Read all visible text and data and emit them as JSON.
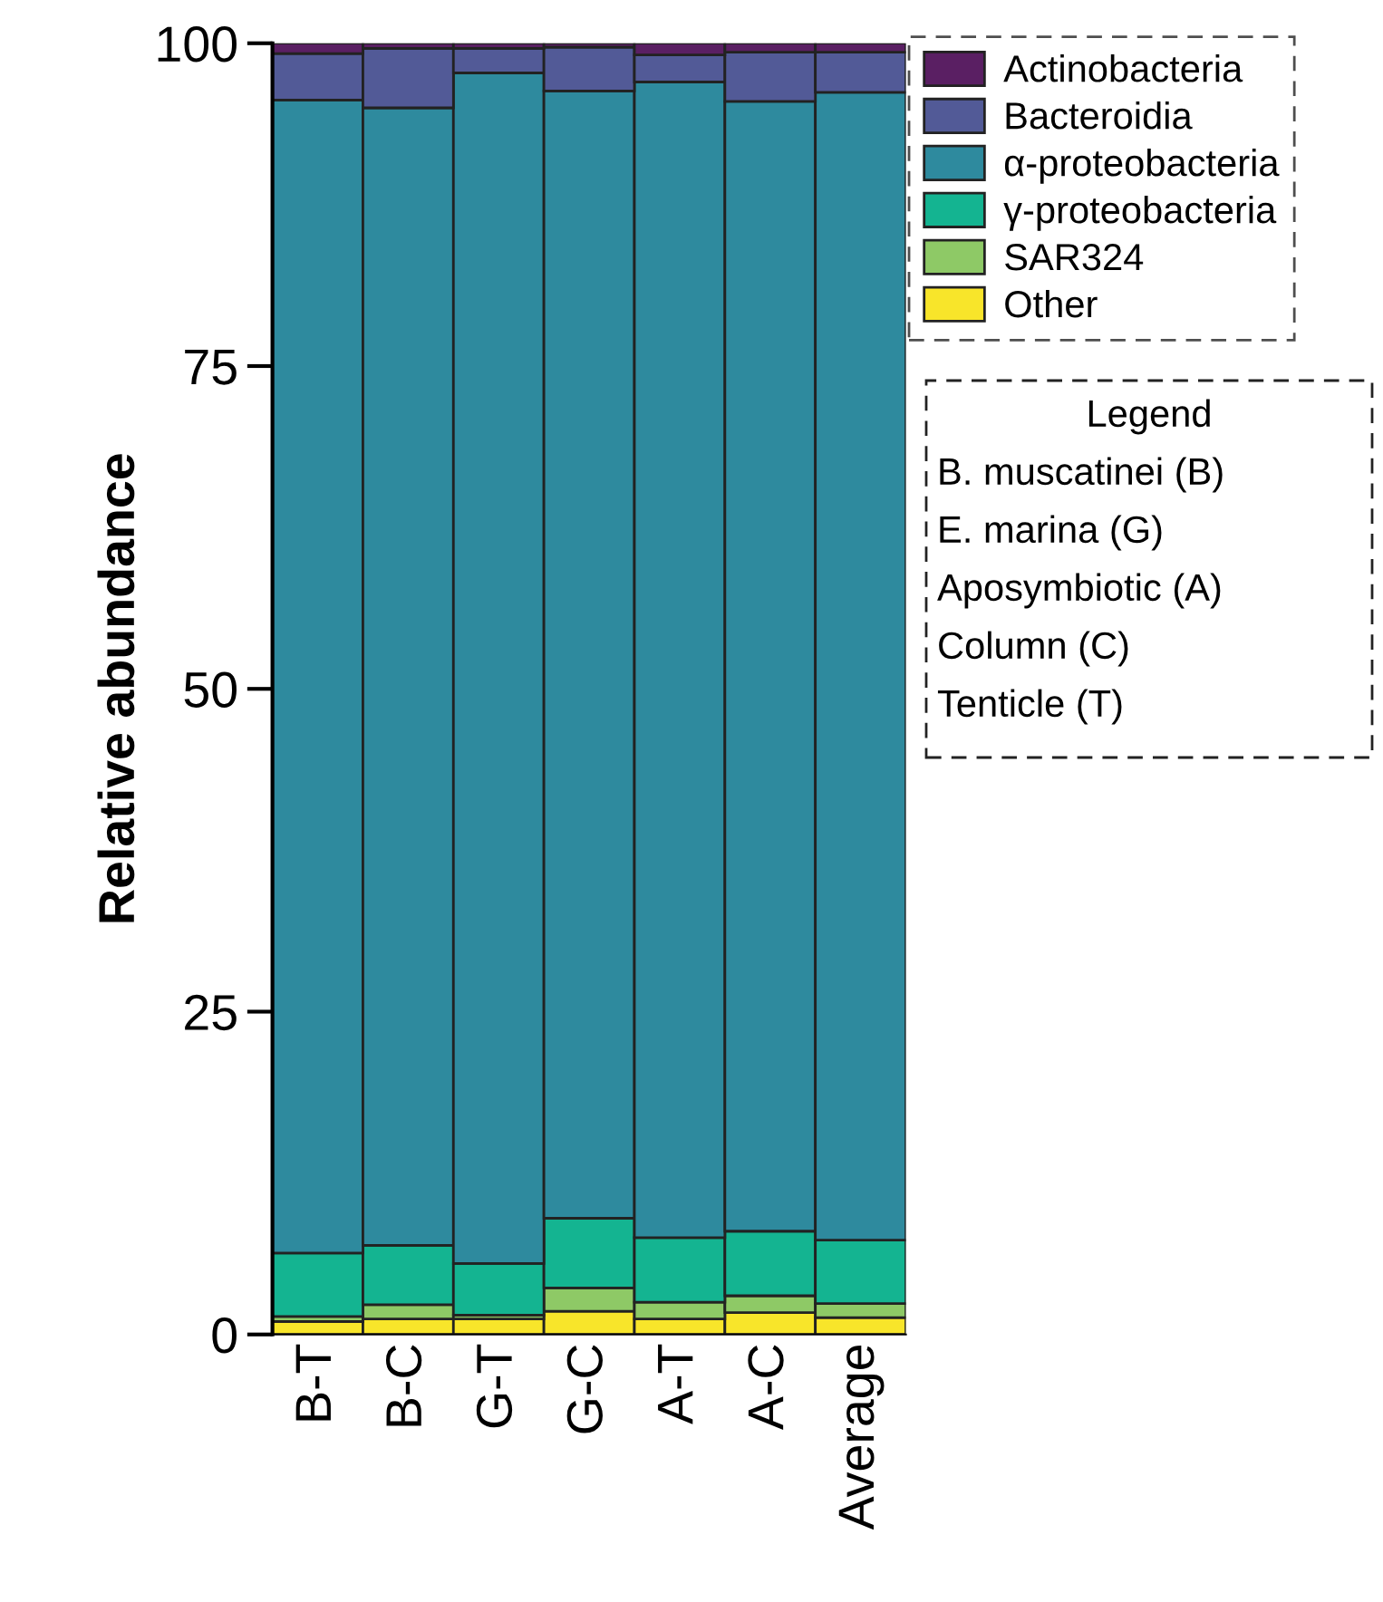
{
  "chart_data": {
    "type": "bar",
    "stacked": true,
    "ylabel": "Relative abundance",
    "categories": [
      "B-T",
      "B-C",
      "G-T",
      "G-C",
      "A-T",
      "A-C",
      "Average"
    ],
    "series": [
      {
        "name": "Other",
        "color": "#f8e52a",
        "values": [
          1.0,
          1.2,
          1.2,
          1.8,
          1.2,
          1.7,
          1.3
        ]
      },
      {
        "name": "SAR324",
        "color": "#8ec966",
        "values": [
          0.4,
          1.1,
          0.3,
          1.8,
          1.3,
          1.3,
          1.1
        ]
      },
      {
        "name": "γ-proteobacteria",
        "color": "#14b491",
        "values": [
          4.9,
          4.6,
          4.0,
          5.4,
          5.0,
          5.0,
          4.9
        ]
      },
      {
        "name": "α-proteobacteria",
        "color": "#2e8a9e",
        "values": [
          89.3,
          88.1,
          92.2,
          87.3,
          89.5,
          87.5,
          88.9
        ]
      },
      {
        "name": "Bacteroidia",
        "color": "#525a97",
        "values": [
          3.6,
          4.6,
          1.9,
          3.4,
          2.1,
          3.8,
          3.1
        ]
      },
      {
        "name": "Actinobacteria",
        "color": "#5a1f63",
        "values": [
          0.8,
          0.4,
          0.4,
          0.3,
          0.9,
          0.7,
          0.7
        ]
      }
    ],
    "ylim": [
      0,
      100
    ],
    "yticks": [
      0,
      25,
      50,
      75,
      100
    ],
    "grid": false,
    "legend": "top right",
    "annotations": [
      "Legend",
      "B. muscatinei (B)",
      "E. marina (G)",
      "Aposymbiotic (A)",
      "Column (C)",
      "Tenticle (T)"
    ]
  }
}
